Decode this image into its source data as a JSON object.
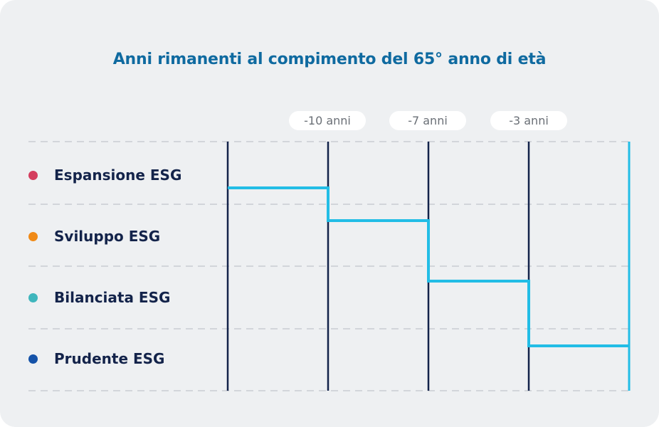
{
  "title": "Anni rimanenti al compimento del 65° anno di età",
  "time_markers": [
    "-10 anni",
    "-7 anni",
    "-3 anni"
  ],
  "rows": [
    {
      "label": "Espansione ESG",
      "color": "#d43d5e"
    },
    {
      "label": "Sviluppo ESG",
      "color": "#f08a17"
    },
    {
      "label": "Bilanciata ESG",
      "color": "#3fb6bd"
    },
    {
      "label": "Prudente ESG",
      "color": "#1452a8"
    }
  ],
  "colors": {
    "title": "#0f6aa0",
    "step_line": "#22bde6",
    "divider": "#13234a",
    "grid_dashed": "#c9ccd1",
    "background": "#eef0f2"
  },
  "step_path": {
    "description_levels": [
      "Espansione ESG",
      "Sviluppo ESG",
      "Bilanciata ESG",
      "Prudente ESG"
    ]
  }
}
